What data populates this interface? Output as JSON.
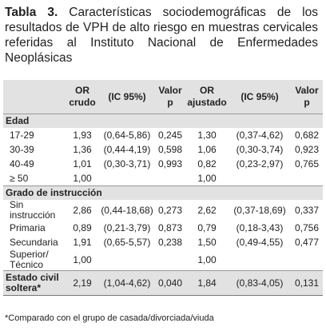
{
  "title": {
    "label": "Tabla 3.",
    "text": "Características sociodemográficas de los resultados de VPH de alto riesgo en muestras cervicales referidas al Instituto Nacional de Enfermedades Neoplásicas"
  },
  "table": {
    "header": [
      "OR crudo",
      "(IC 95%)",
      "Valor p",
      "OR ajustado",
      "(IC 95%)",
      "Valor p"
    ],
    "rows": [
      {
        "section": "Edad"
      },
      {
        "label": "17-29",
        "cells": [
          "1,93",
          "(0,64-5,86)",
          "0,245",
          "1,30",
          "(0,37-4,62)",
          "0,682"
        ]
      },
      {
        "label": "30-39",
        "cells": [
          "1,36",
          "(0,44-4,19)",
          "0,598",
          "1,06",
          "(0,30-3,74)",
          "0,923"
        ]
      },
      {
        "label": "40-49",
        "cells": [
          "1,01",
          "(0,30-3,71)",
          "0,993",
          "0,82",
          "(0,23-2,97)",
          "0,765"
        ]
      },
      {
        "label": "≥ 50",
        "cells": [
          "1,00",
          null,
          null,
          "1,00",
          null,
          null
        ]
      },
      {
        "section": "Grado de instrucción"
      },
      {
        "label": "Sin instrucción",
        "cells": [
          "2,86",
          "(0,44-18,68)",
          "0,273",
          "2,62",
          "(0,37-18,69)",
          "0,337"
        ]
      },
      {
        "label": "Primaria",
        "cells": [
          "0,89",
          "(0,21-3,79)",
          "0,873",
          "0,79",
          "(0,18-3,43)",
          "0,756"
        ]
      },
      {
        "label": "Secundaria",
        "cells": [
          "1,91",
          "(0,65-5,57)",
          "0,238",
          "1,50",
          "(0,49-4,55)",
          "0,477"
        ]
      },
      {
        "label": "Superior/ Técnico",
        "cells": [
          "1,00",
          null,
          null,
          "1,00",
          null,
          null
        ]
      },
      {
        "label": "Estado civil soltera*",
        "bold": true,
        "cells": [
          "2,19",
          "(1,04-4,62)",
          "0,040",
          "1,84",
          "(0,83-4,05)",
          "0,131"
        ]
      }
    ],
    "footnote": "*Comparado con el grupo de casada/divorciada/viuda"
  }
}
